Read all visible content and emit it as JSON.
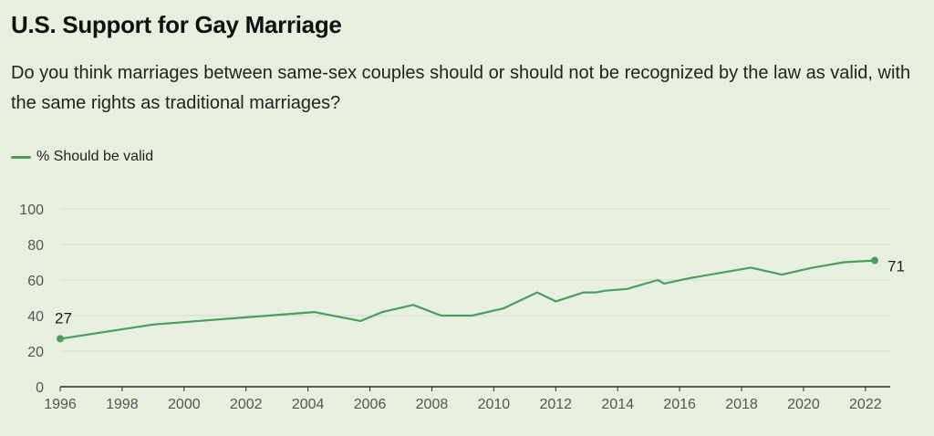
{
  "chart_data": {
    "type": "line",
    "title": "U.S. Support for Gay Marriage",
    "subtitle": "Do you think marriages between same-sex couples should or should not be recognized by the law as valid, with the same rights as traditional marriages?",
    "xlabel": "",
    "ylabel": "",
    "xlim": [
      1996,
      2022.8
    ],
    "ylim": [
      0,
      100
    ],
    "x_ticks": [
      1996,
      1998,
      2000,
      2002,
      2004,
      2006,
      2008,
      2010,
      2012,
      2014,
      2016,
      2018,
      2020,
      2022
    ],
    "y_ticks": [
      0,
      20,
      40,
      60,
      80,
      100
    ],
    "grid": true,
    "legend_position": "top-left",
    "colors": {
      "line": "#4a9d5b",
      "grid": "#d3dccd",
      "axis": "#2b2b2b"
    },
    "series": [
      {
        "name": "% Should be valid",
        "x": [
          1996.0,
          1999.0,
          2004.2,
          2005.7,
          2006.4,
          2007.4,
          2008.3,
          2009.3,
          2010.3,
          2011.4,
          2012.0,
          2012.9,
          2013.3,
          2013.6,
          2014.3,
          2015.3,
          2015.5,
          2016.3,
          2018.3,
          2019.3,
          2020.3,
          2021.3,
          2022.3
        ],
        "y": [
          27,
          35,
          42,
          37,
          42,
          46,
          40,
          40,
          44,
          53,
          48,
          53,
          53,
          54,
          55,
          60,
          58,
          61,
          67,
          63,
          67,
          70,
          71
        ],
        "start_label": "27",
        "end_label": "71"
      }
    ]
  }
}
